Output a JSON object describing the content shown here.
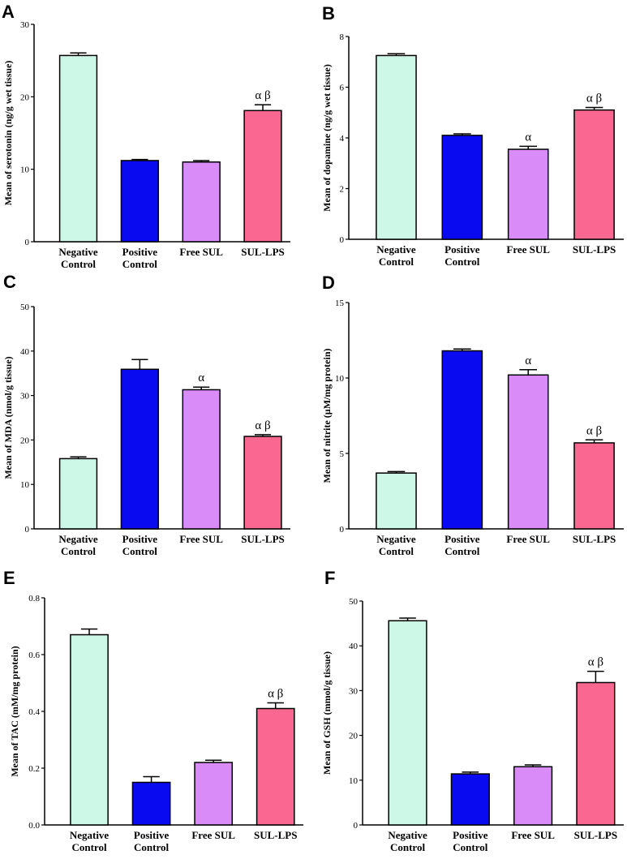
{
  "colors": [
    "#cdf7e6",
    "#0a0af0",
    "#d98cf7",
    "#fa6891"
  ],
  "chart_data": [
    {
      "type": "bar",
      "panel": "A",
      "categories": [
        [
          "Negative",
          "Control"
        ],
        [
          "Positive",
          "Control"
        ],
        [
          "Free SUL"
        ],
        [
          "SUL-LPS"
        ]
      ],
      "values": [
        25.7,
        11.2,
        11.0,
        18.1
      ],
      "errors": [
        0.35,
        0.15,
        0.2,
        0.8
      ],
      "annotations": [
        "",
        "",
        "",
        "α β"
      ],
      "ylabel": "Mean of serotonin (ng/g wet tissue)",
      "ylim": [
        0,
        30
      ],
      "yticks": [
        0,
        10,
        20,
        30
      ],
      "tick_labels": [
        "0",
        "10",
        "20",
        "30"
      ]
    },
    {
      "type": "bar",
      "panel": "B",
      "categories": [
        [
          "Negative",
          "Control"
        ],
        [
          "Positive",
          "Control"
        ],
        [
          "Free SUL"
        ],
        [
          "SUL-LPS"
        ]
      ],
      "values": [
        7.25,
        4.1,
        3.55,
        5.1
      ],
      "errors": [
        0.07,
        0.06,
        0.12,
        0.1
      ],
      "annotations": [
        "",
        "",
        "α",
        "α β"
      ],
      "ylabel": "Mean of dopamine (ng/g wet tissue)",
      "ylim": [
        0,
        8
      ],
      "yticks": [
        0,
        2,
        4,
        6,
        8
      ],
      "tick_labels": [
        "0",
        "2",
        "4",
        "6",
        "8"
      ]
    },
    {
      "type": "bar",
      "panel": "C",
      "categories": [
        [
          "Negative",
          "Control"
        ],
        [
          "Positive",
          "Control"
        ],
        [
          "Free SUL"
        ],
        [
          "SUL-LPS"
        ]
      ],
      "values": [
        15.8,
        35.9,
        31.3,
        20.8
      ],
      "errors": [
        0.4,
        2.2,
        0.6,
        0.4
      ],
      "annotations": [
        "",
        "",
        "α",
        "α β"
      ],
      "ylabel": "Mean of MDA (nmol/g tissue)",
      "ylim": [
        0,
        50
      ],
      "yticks": [
        0,
        10,
        20,
        30,
        40,
        50
      ],
      "tick_labels": [
        "0",
        "10",
        "20",
        "30",
        "40",
        "50"
      ]
    },
    {
      "type": "bar",
      "panel": "D",
      "categories": [
        [
          "Negative",
          "Control"
        ],
        [
          "Positive",
          "Control"
        ],
        [
          "Free SUL"
        ],
        [
          "SUL-LPS"
        ]
      ],
      "values": [
        3.7,
        11.8,
        10.2,
        5.7
      ],
      "errors": [
        0.1,
        0.12,
        0.35,
        0.2
      ],
      "annotations": [
        "",
        "",
        "α",
        "α β"
      ],
      "ylabel": "Mean of nitrite (µM/mg protein)",
      "ylim": [
        0,
        15
      ],
      "yticks": [
        0,
        5,
        10,
        15
      ],
      "tick_labels": [
        "0",
        "5",
        "10",
        "15"
      ]
    },
    {
      "type": "bar",
      "panel": "E",
      "categories": [
        [
          "Negative",
          "Control"
        ],
        [
          "Positive",
          "Control"
        ],
        [
          "Free SUL"
        ],
        [
          "SUL-LPS"
        ]
      ],
      "values": [
        0.67,
        0.15,
        0.22,
        0.41
      ],
      "errors": [
        0.02,
        0.02,
        0.008,
        0.02
      ],
      "annotations": [
        "",
        "",
        "",
        "α β"
      ],
      "ylabel": "Mean of TAC (mM/mg protein)",
      "ylim": [
        0,
        0.8
      ],
      "yticks": [
        0,
        0.2,
        0.4,
        0.6,
        0.8
      ],
      "tick_labels": [
        "0.0",
        "0.2",
        "0.4",
        "0.6",
        "0.8"
      ]
    },
    {
      "type": "bar",
      "panel": "F",
      "categories": [
        [
          "Negative",
          "Control"
        ],
        [
          "Positive",
          "Control"
        ],
        [
          "Free SUL"
        ],
        [
          "SUL-LPS"
        ]
      ],
      "values": [
        45.6,
        11.4,
        13.0,
        31.8
      ],
      "errors": [
        0.6,
        0.4,
        0.4,
        2.5
      ],
      "annotations": [
        "",
        "",
        "",
        "α β"
      ],
      "ylabel": "Mean of GSH (mmol/g tissue)",
      "ylim": [
        0,
        50
      ],
      "yticks": [
        0,
        10,
        20,
        30,
        40,
        50
      ],
      "tick_labels": [
        "0",
        "10",
        "20",
        "30",
        "40",
        "50"
      ]
    }
  ]
}
